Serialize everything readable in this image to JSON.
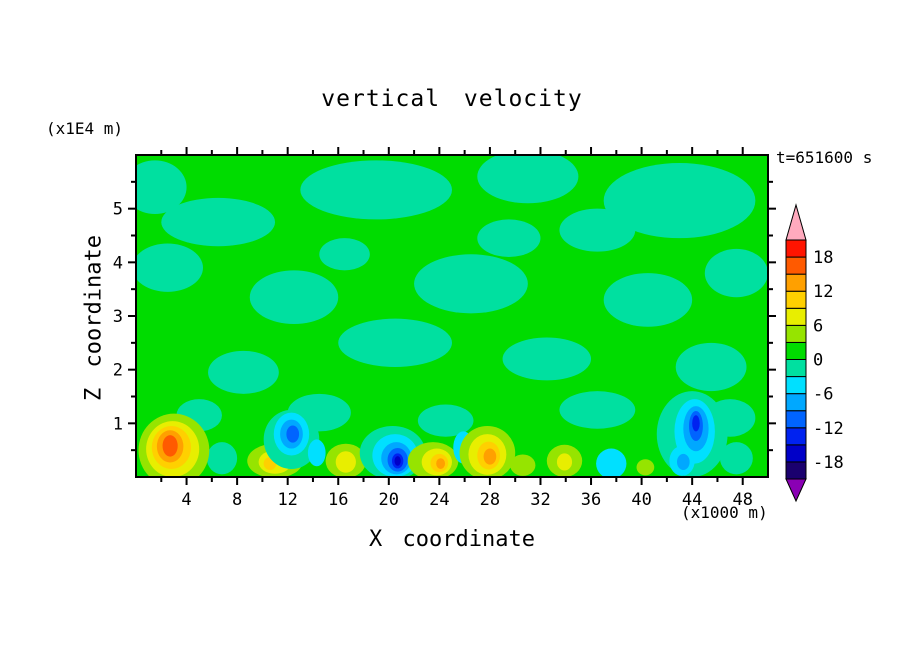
{
  "chart_data": {
    "type": "heatmap",
    "title": "vertical velocity",
    "xlabel": "X coordinate",
    "ylabel": "Z coordinate",
    "x_units": "(x1000 m)",
    "y_units": "(x1E4 m)",
    "timestamp": "t=651600 s",
    "xlim": [
      0,
      50
    ],
    "ylim": [
      0,
      6
    ],
    "x_major_ticks": [
      4,
      8,
      12,
      16,
      20,
      24,
      28,
      32,
      36,
      40,
      44,
      48
    ],
    "x_minor_step": 2,
    "y_major_ticks": [
      1,
      2,
      3,
      4,
      5
    ],
    "y_minor_step": 0.5,
    "legend_position": "right",
    "grid": false,
    "colorbar": {
      "levels": [
        -21,
        -18,
        -15,
        -12,
        -9,
        -6,
        -3,
        0,
        3,
        6,
        9,
        12,
        15,
        18,
        21
      ],
      "colors": [
        "#1a006e",
        "#0000c8",
        "#0022f0",
        "#0064ff",
        "#00a8ff",
        "#00e0ff",
        "#00e0a0",
        "#00dc00",
        "#96e400",
        "#e8ee00",
        "#ffd000",
        "#ffa000",
        "#ff5a00",
        "#ff1400"
      ],
      "below_color": "#8a00b4",
      "above_color": "#ffaabe",
      "labels": [
        "18",
        "12",
        "6",
        "0",
        "-6",
        "-12",
        "-18"
      ],
      "label_values": [
        18,
        12,
        6,
        0,
        -6,
        -12,
        -18
      ]
    },
    "field": {
      "background_value": 1.5,
      "blobs": [
        {
          "x": 6.5,
          "z": 4.75,
          "rx": 4.5,
          "rz": 0.45,
          "v": -1.5
        },
        {
          "x": 1.5,
          "z": 5.4,
          "rx": 2.5,
          "rz": 0.5,
          "v": -1.5
        },
        {
          "x": 19,
          "z": 5.35,
          "rx": 6,
          "rz": 0.55,
          "v": -1.5
        },
        {
          "x": 31,
          "z": 5.6,
          "rx": 4,
          "rz": 0.5,
          "v": -1.5
        },
        {
          "x": 43,
          "z": 5.15,
          "rx": 6,
          "rz": 0.7,
          "v": -1.5
        },
        {
          "x": 36.5,
          "z": 4.6,
          "rx": 3,
          "rz": 0.4,
          "v": -1.5
        },
        {
          "x": 2.5,
          "z": 3.9,
          "rx": 2.8,
          "rz": 0.45,
          "v": -1.5
        },
        {
          "x": 12.5,
          "z": 3.35,
          "rx": 3.5,
          "rz": 0.5,
          "v": -1.5
        },
        {
          "x": 26.5,
          "z": 3.6,
          "rx": 4.5,
          "rz": 0.55,
          "v": -1.5
        },
        {
          "x": 40.5,
          "z": 3.3,
          "rx": 3.5,
          "rz": 0.5,
          "v": -1.5
        },
        {
          "x": 47.5,
          "z": 3.8,
          "rx": 2.5,
          "rz": 0.45,
          "v": -1.5
        },
        {
          "x": 20.5,
          "z": 2.5,
          "rx": 4.5,
          "rz": 0.45,
          "v": -1.5
        },
        {
          "x": 32.5,
          "z": 2.2,
          "rx": 3.5,
          "rz": 0.4,
          "v": -1.5
        },
        {
          "x": 8.5,
          "z": 1.95,
          "rx": 2.8,
          "rz": 0.4,
          "v": -1.5
        },
        {
          "x": 45.5,
          "z": 2.05,
          "rx": 2.8,
          "rz": 0.45,
          "v": -1.5
        },
        {
          "x": 14.5,
          "z": 1.2,
          "rx": 2.5,
          "rz": 0.35,
          "v": -1.5
        },
        {
          "x": 24.5,
          "z": 1.05,
          "rx": 2.2,
          "rz": 0.3,
          "v": -1.5
        },
        {
          "x": 36.5,
          "z": 1.25,
          "rx": 3,
          "rz": 0.35,
          "v": -1.5
        },
        {
          "x": 5,
          "z": 1.15,
          "rx": 1.8,
          "rz": 0.3,
          "v": -1.5
        },
        {
          "x": 47,
          "z": 1.1,
          "rx": 2,
          "rz": 0.35,
          "v": -1.5
        },
        {
          "x": 29.5,
          "z": 4.45,
          "rx": 2.5,
          "rz": 0.35,
          "v": -1.5
        },
        {
          "x": 16.5,
          "z": 4.15,
          "rx": 2,
          "rz": 0.3,
          "v": -1.5
        },
        {
          "x": 6.8,
          "z": 0.35,
          "rx": 1.2,
          "rz": 0.3,
          "v": -1.5
        },
        {
          "x": 3,
          "z": 0.5,
          "rx": 2.8,
          "rz": 0.68,
          "v": 4.5
        },
        {
          "x": 2.9,
          "z": 0.52,
          "rx": 2.1,
          "rz": 0.52,
          "v": 7.5
        },
        {
          "x": 2.8,
          "z": 0.55,
          "rx": 1.55,
          "rz": 0.4,
          "v": 10.5
        },
        {
          "x": 2.7,
          "z": 0.57,
          "rx": 1.05,
          "rz": 0.3,
          "v": 13.5
        },
        {
          "x": 2.7,
          "z": 0.58,
          "rx": 0.6,
          "rz": 0.2,
          "v": 16.5
        },
        {
          "x": 11,
          "z": 0.3,
          "rx": 2.2,
          "rz": 0.32,
          "v": 4.5
        },
        {
          "x": 11,
          "z": 0.28,
          "rx": 1.3,
          "rz": 0.22,
          "v": 7.5
        },
        {
          "x": 10.6,
          "z": 0.25,
          "rx": 0.5,
          "rz": 0.12,
          "v": 10.5
        },
        {
          "x": 12.3,
          "z": 0.7,
          "rx": 2.2,
          "rz": 0.55,
          "v": -1.5
        },
        {
          "x": 12.3,
          "z": 0.8,
          "rx": 1.4,
          "rz": 0.4,
          "v": -4.5
        },
        {
          "x": 12.3,
          "z": 0.8,
          "rx": 0.9,
          "rz": 0.27,
          "v": -7.5
        },
        {
          "x": 12.4,
          "z": 0.8,
          "rx": 0.5,
          "rz": 0.16,
          "v": -10.5
        },
        {
          "x": 14.3,
          "z": 0.45,
          "rx": 0.7,
          "rz": 0.25,
          "v": -4.5
        },
        {
          "x": 16.6,
          "z": 0.3,
          "rx": 1.6,
          "rz": 0.32,
          "v": 4.5
        },
        {
          "x": 16.6,
          "z": 0.28,
          "rx": 0.8,
          "rz": 0.2,
          "v": 7.5
        },
        {
          "x": 20.3,
          "z": 0.45,
          "rx": 2.6,
          "rz": 0.5,
          "v": -1.5
        },
        {
          "x": 20.5,
          "z": 0.4,
          "rx": 1.8,
          "rz": 0.4,
          "v": -4.5
        },
        {
          "x": 20.6,
          "z": 0.35,
          "rx": 1.2,
          "rz": 0.3,
          "v": -7.5
        },
        {
          "x": 20.7,
          "z": 0.32,
          "rx": 0.8,
          "rz": 0.22,
          "v": -10.5
        },
        {
          "x": 20.7,
          "z": 0.3,
          "rx": 0.45,
          "rz": 0.14,
          "v": -13.5
        },
        {
          "x": 20.7,
          "z": 0.3,
          "rx": 0.25,
          "rz": 0.09,
          "v": -16.5
        },
        {
          "x": 23.5,
          "z": 0.3,
          "rx": 2.0,
          "rz": 0.35,
          "v": 4.5
        },
        {
          "x": 23.8,
          "z": 0.28,
          "rx": 1.2,
          "rz": 0.25,
          "v": 7.5
        },
        {
          "x": 24,
          "z": 0.26,
          "rx": 0.7,
          "rz": 0.17,
          "v": 10.5
        },
        {
          "x": 24.1,
          "z": 0.25,
          "rx": 0.35,
          "rz": 0.1,
          "v": 13.5
        },
        {
          "x": 25.9,
          "z": 0.55,
          "rx": 0.8,
          "rz": 0.3,
          "v": -4.5
        },
        {
          "x": 27.8,
          "z": 0.45,
          "rx": 2.2,
          "rz": 0.5,
          "v": 4.5
        },
        {
          "x": 27.8,
          "z": 0.42,
          "rx": 1.5,
          "rz": 0.38,
          "v": 7.5
        },
        {
          "x": 27.9,
          "z": 0.4,
          "rx": 0.9,
          "rz": 0.26,
          "v": 10.5
        },
        {
          "x": 28,
          "z": 0.38,
          "rx": 0.5,
          "rz": 0.15,
          "v": 13.5
        },
        {
          "x": 30.6,
          "z": 0.22,
          "rx": 1.0,
          "rz": 0.2,
          "v": 4.5
        },
        {
          "x": 33.9,
          "z": 0.3,
          "rx": 1.4,
          "rz": 0.3,
          "v": 4.5
        },
        {
          "x": 33.9,
          "z": 0.28,
          "rx": 0.6,
          "rz": 0.16,
          "v": 7.5
        },
        {
          "x": 37.6,
          "z": 0.25,
          "rx": 1.2,
          "rz": 0.28,
          "v": -4.5
        },
        {
          "x": 40.3,
          "z": 0.18,
          "rx": 0.7,
          "rz": 0.15,
          "v": 4.5
        },
        {
          "x": 44,
          "z": 0.8,
          "rx": 2.8,
          "rz": 0.8,
          "v": -1.5
        },
        {
          "x": 44.2,
          "z": 0.85,
          "rx": 1.6,
          "rz": 0.6,
          "v": -4.5
        },
        {
          "x": 44.3,
          "z": 0.9,
          "rx": 1.0,
          "rz": 0.42,
          "v": -7.5
        },
        {
          "x": 44.3,
          "z": 0.95,
          "rx": 0.55,
          "rz": 0.28,
          "v": -10.5
        },
        {
          "x": 44.3,
          "z": 1.0,
          "rx": 0.3,
          "rz": 0.15,
          "v": -13.5
        },
        {
          "x": 43.2,
          "z": 0.3,
          "rx": 1.0,
          "rz": 0.28,
          "v": -4.5
        },
        {
          "x": 43.3,
          "z": 0.28,
          "rx": 0.5,
          "rz": 0.15,
          "v": -7.5
        },
        {
          "x": 47.5,
          "z": 0.35,
          "rx": 1.3,
          "rz": 0.3,
          "v": -1.5
        }
      ]
    }
  }
}
